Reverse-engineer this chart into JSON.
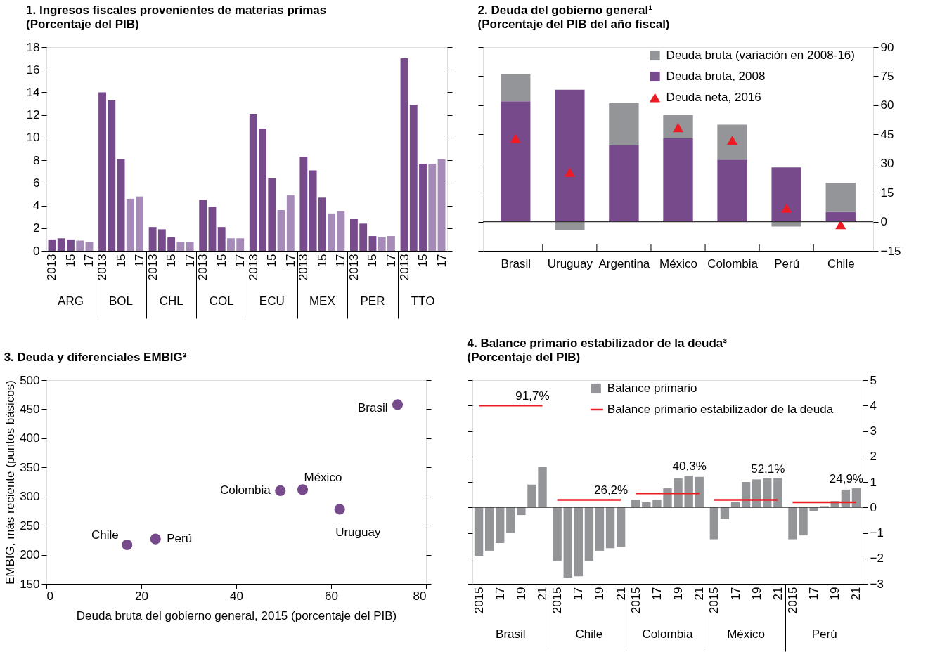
{
  "chart_data": [
    {
      "type": "bar",
      "title": "1.  Ingresos fiscales provenientes de materias primas",
      "subtitle": "(Porcentaje del PIB)",
      "categories": [
        "2013",
        null,
        "15",
        null,
        "17",
        "2013",
        null,
        "15",
        null,
        "17",
        "2013",
        null,
        "15",
        null,
        "17",
        "2013",
        null,
        "15",
        null,
        "17",
        "2013",
        null,
        "15",
        null,
        "17",
        "2013",
        null,
        "15",
        null,
        "17",
        "2013",
        null,
        "15",
        null,
        "17",
        "2013",
        null,
        "15",
        null,
        "17"
      ],
      "values": [
        1.0,
        1.1,
        1.0,
        0.9,
        0.8,
        14.0,
        13.3,
        8.1,
        4.6,
        4.8,
        2.1,
        1.9,
        1.2,
        0.8,
        0.8,
        4.5,
        3.9,
        2.1,
        1.1,
        1.1,
        12.1,
        10.8,
        6.4,
        3.6,
        4.9,
        8.3,
        7.1,
        4.7,
        3.3,
        3.5,
        2.8,
        2.4,
        1.3,
        1.2,
        1.3,
        17.0,
        12.9,
        7.7,
        7.7,
        8.1
      ],
      "colors": [
        "#774a8c",
        "#774a8c",
        "#774a8c",
        "#a68bb8",
        "#a68bb8",
        "#774a8c",
        "#774a8c",
        "#774a8c",
        "#a68bb8",
        "#a68bb8",
        "#774a8c",
        "#774a8c",
        "#774a8c",
        "#a68bb8",
        "#a68bb8",
        "#774a8c",
        "#774a8c",
        "#774a8c",
        "#a68bb8",
        "#a68bb8",
        "#774a8c",
        "#774a8c",
        "#774a8c",
        "#a68bb8",
        "#a68bb8",
        "#774a8c",
        "#774a8c",
        "#774a8c",
        "#a68bb8",
        "#a68bb8",
        "#774a8c",
        "#774a8c",
        "#774a8c",
        "#a68bb8",
        "#a68bb8",
        "#774a8c",
        "#774a8c",
        "#774a8c",
        "#a68bb8",
        "#a68bb8"
      ],
      "ylim": [
        0,
        18
      ],
      "yticks": [
        0,
        2,
        4,
        6,
        8,
        10,
        12,
        14,
        16,
        18
      ],
      "annotations": [
        "ARG",
        "BOL",
        "CHL",
        "COL",
        "ECU",
        "MEX",
        "PER",
        "TTO"
      ]
    },
    {
      "type": "bar",
      "title": "2.  Deuda del gobierno general¹",
      "subtitle": "(Porcentaje del PIB del año fiscal)",
      "categories": [
        "Brasil",
        "Uruguay",
        "Argentina",
        "México",
        "Colombia",
        "Perú",
        "Chile"
      ],
      "stacked": true,
      "series": [
        {
          "name": "Deuda bruta, 2008",
          "color": "#774a8c",
          "axis": "y2",
          "values": [
            62,
            68,
            39.5,
            43,
            32,
            28,
            5
          ]
        },
        {
          "name": "Deuda bruta (variación en 2008-16)",
          "color": "#939598",
          "axis": "y2",
          "values": [
            14,
            -4.5,
            21.5,
            12,
            18,
            -2.5,
            15
          ]
        },
        {
          "name": "Deuda neta, 2016",
          "type": "scatter",
          "marker": "triangle",
          "color": "#ed1c24",
          "axis": "y2",
          "values": [
            43,
            25.5,
            null,
            48.5,
            42,
            7,
            -1.5
          ]
        }
      ],
      "y2lim": [
        -15,
        90
      ],
      "y2ticks": [
        -15,
        0,
        15,
        30,
        45,
        60,
        75,
        90
      ],
      "ref_lines": [
        {
          "axis": "y2",
          "value": 0,
          "color": "#333333"
        }
      ],
      "legend": "top right"
    },
    {
      "type": "scatter",
      "title": "3.  Deuda y diferenciales EMBIG²",
      "x": [
        74,
        49.3,
        54,
        61.8,
        17,
        23
      ],
      "values": [
        458,
        310,
        312,
        278,
        217,
        227
      ],
      "color": "#774a8c",
      "marker": "circle",
      "xlim": [
        0,
        80
      ],
      "xticks": [
        0,
        20,
        40,
        60,
        80
      ],
      "ylim": [
        150,
        500
      ],
      "yticks": [
        150,
        200,
        250,
        300,
        350,
        400,
        450,
        500
      ],
      "xlabel": "Deuda bruta del gobierno general, 2015 (porcentaje del PIB)",
      "ylabel": "EMBIG, más reciente (puntos básicos)",
      "annotations": [
        {
          "text": "Brasil",
          "x": 74,
          "y": 458
        },
        {
          "text": "Colombia",
          "x": 49.3,
          "y": 310
        },
        {
          "text": "México",
          "x": 54,
          "y": 312
        },
        {
          "text": "Uruguay",
          "x": 61.8,
          "y": 278
        },
        {
          "text": "Chile",
          "x": 17,
          "y": 217
        },
        {
          "text": "Perú",
          "x": 23,
          "y": 227
        }
      ]
    },
    {
      "type": "bar",
      "title": "4.  Balance primario estabilizador de la deuda³",
      "subtitle": "(Porcentaje del PIB)",
      "categories": [
        "2015",
        null,
        "17",
        null,
        "19",
        null,
        "21",
        "2015",
        null,
        "17",
        null,
        "19",
        null,
        "21",
        "2015",
        null,
        "17",
        null,
        "19",
        null,
        "21",
        "2015",
        null,
        "17",
        null,
        "19",
        null,
        "21",
        "2015",
        null,
        "17",
        null,
        "19",
        null,
        "21"
      ],
      "series": [
        {
          "name": "Balance primario",
          "color": "#939598",
          "axis": "y2",
          "values": [
            -1.9,
            -1.7,
            -1.4,
            -1.0,
            -0.3,
            0.9,
            1.6,
            -2.1,
            -2.75,
            -2.7,
            -2.1,
            -1.7,
            -1.6,
            -1.55,
            0.3,
            0.2,
            0.3,
            0.75,
            1.15,
            1.25,
            1.2,
            -1.25,
            -0.45,
            0.2,
            1.0,
            1.1,
            1.15,
            1.15,
            -1.25,
            -1.1,
            -0.15,
            0.05,
            0.25,
            0.7,
            0.75
          ]
        },
        {
          "name": "Balance primario estabilizador de la deuda",
          "type": "line",
          "color": "#ed1c24",
          "axis": "y2",
          "values": [
            4.0,
            4.0,
            4.0,
            4.0,
            4.0,
            4.0,
            4.0,
            0.3,
            0.3,
            0.3,
            0.3,
            0.3,
            0.3,
            0.3,
            0.55,
            0.55,
            0.55,
            0.55,
            0.55,
            0.55,
            0.55,
            0.3,
            0.3,
            0.3,
            0.3,
            0.3,
            0.3,
            0.3,
            0.2,
            0.2,
            0.2,
            0.2,
            0.2,
            0.2,
            0.2
          ]
        }
      ],
      "y2lim": [
        -3,
        5
      ],
      "y2ticks": [
        -3,
        -2,
        -1,
        0,
        1,
        2,
        3,
        4,
        5
      ],
      "ref_lines": [
        {
          "axis": "y2",
          "value": 0,
          "color": "#333333"
        }
      ],
      "legend": "top right",
      "annotations": [
        "Brasil",
        "Chile",
        "Colombia",
        "México",
        "Perú",
        {
          "text": "91,7%"
        },
        {
          "text": "26,2%"
        },
        {
          "text": "40,3%"
        },
        {
          "text": "52,1%"
        },
        {
          "text": "24,9%"
        }
      ]
    }
  ]
}
